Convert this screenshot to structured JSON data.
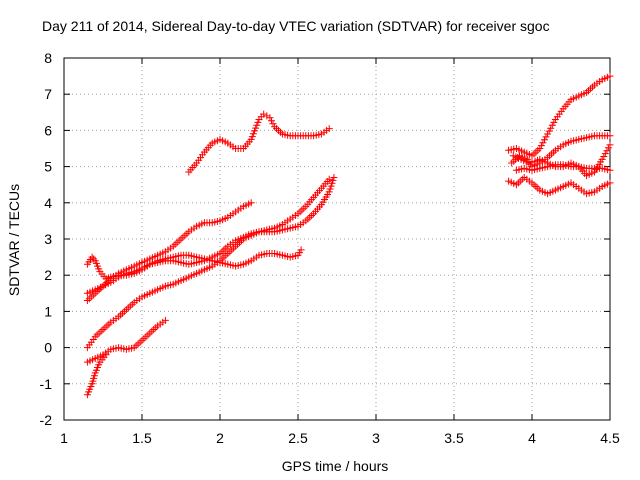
{
  "chart_data": {
    "type": "scatter",
    "title": "Day 211 of 2014, Sidereal Day-to-day VTEC variation (SDTVAR) for receiver sgoc",
    "xlabel": "GPS time / hours",
    "ylabel": "SDTVAR / TECUs",
    "xlim": [
      1,
      4.5
    ],
    "ylim": [
      -2,
      8
    ],
    "x_ticks": [
      "1",
      "1.5",
      "2",
      "2.5",
      "3",
      "3.5",
      "4",
      "4.5"
    ],
    "y_ticks": [
      "-2",
      "-1",
      "0",
      "1",
      "2",
      "3",
      "4",
      "5",
      "6",
      "7",
      "8"
    ],
    "grid": true,
    "marker": "+",
    "color": "#ff0000",
    "series": [
      {
        "points": [
          [
            1.15,
            -1.3
          ],
          [
            1.18,
            -1.0
          ],
          [
            1.2,
            -0.7
          ],
          [
            1.23,
            -0.4
          ],
          [
            1.27,
            -0.2
          ]
        ]
      },
      {
        "points": [
          [
            1.15,
            -0.4
          ],
          [
            1.2,
            -0.3
          ],
          [
            1.25,
            -0.2
          ],
          [
            1.3,
            -0.05
          ],
          [
            1.35,
            0.0
          ],
          [
            1.4,
            -0.05
          ],
          [
            1.45,
            0.0
          ],
          [
            1.5,
            0.2
          ],
          [
            1.55,
            0.4
          ],
          [
            1.6,
            0.6
          ],
          [
            1.65,
            0.75
          ]
        ]
      },
      {
        "points": [
          [
            1.15,
            0.0
          ],
          [
            1.2,
            0.3
          ],
          [
            1.25,
            0.5
          ],
          [
            1.3,
            0.7
          ],
          [
            1.35,
            0.85
          ],
          [
            1.4,
            1.05
          ],
          [
            1.45,
            1.25
          ],
          [
            1.5,
            1.4
          ],
          [
            1.55,
            1.5
          ],
          [
            1.6,
            1.6
          ],
          [
            1.65,
            1.7
          ],
          [
            1.7,
            1.75
          ],
          [
            1.75,
            1.85
          ],
          [
            1.8,
            1.95
          ],
          [
            1.85,
            2.05
          ],
          [
            1.9,
            2.15
          ],
          [
            1.95,
            2.25
          ],
          [
            2.0,
            2.4
          ],
          [
            2.05,
            2.6
          ],
          [
            2.1,
            2.8
          ],
          [
            2.15,
            3.0
          ],
          [
            2.2,
            3.1
          ],
          [
            2.25,
            3.2
          ],
          [
            2.3,
            3.25
          ],
          [
            2.35,
            3.3
          ],
          [
            2.4,
            3.4
          ],
          [
            2.45,
            3.55
          ],
          [
            2.5,
            3.7
          ],
          [
            2.55,
            3.9
          ],
          [
            2.6,
            4.15
          ],
          [
            2.65,
            4.4
          ],
          [
            2.7,
            4.65
          ]
        ]
      },
      {
        "points": [
          [
            1.15,
            1.5
          ],
          [
            1.2,
            1.6
          ],
          [
            1.25,
            1.7
          ],
          [
            1.3,
            1.8
          ],
          [
            1.35,
            1.95
          ],
          [
            1.4,
            2.05
          ],
          [
            1.45,
            2.1
          ],
          [
            1.5,
            2.2
          ],
          [
            1.55,
            2.3
          ],
          [
            1.6,
            2.35
          ],
          [
            1.65,
            2.4
          ],
          [
            1.7,
            2.4
          ],
          [
            1.75,
            2.35
          ],
          [
            1.8,
            2.3
          ],
          [
            1.85,
            2.35
          ],
          [
            1.9,
            2.4
          ],
          [
            1.95,
            2.5
          ],
          [
            2.0,
            2.6
          ],
          [
            2.05,
            2.8
          ],
          [
            2.1,
            2.95
          ],
          [
            2.15,
            3.05
          ],
          [
            2.2,
            3.15
          ],
          [
            2.25,
            3.2
          ],
          [
            2.3,
            3.2
          ],
          [
            2.35,
            3.2
          ],
          [
            2.4,
            3.25
          ],
          [
            2.45,
            3.3
          ],
          [
            2.5,
            3.35
          ],
          [
            2.55,
            3.5
          ],
          [
            2.6,
            3.7
          ],
          [
            2.65,
            3.95
          ],
          [
            2.7,
            4.3
          ],
          [
            2.73,
            4.7
          ]
        ]
      },
      {
        "points": [
          [
            1.15,
            1.3
          ],
          [
            1.2,
            1.5
          ],
          [
            1.25,
            1.7
          ],
          [
            1.3,
            1.9
          ],
          [
            1.35,
            2.05
          ],
          [
            1.4,
            2.15
          ],
          [
            1.45,
            2.25
          ],
          [
            1.5,
            2.35
          ],
          [
            1.55,
            2.45
          ],
          [
            1.6,
            2.55
          ],
          [
            1.65,
            2.65
          ],
          [
            1.7,
            2.8
          ],
          [
            1.75,
            3.0
          ],
          [
            1.8,
            3.2
          ],
          [
            1.85,
            3.35
          ],
          [
            1.9,
            3.45
          ],
          [
            1.95,
            3.45
          ],
          [
            2.0,
            3.5
          ],
          [
            2.05,
            3.6
          ],
          [
            2.1,
            3.75
          ],
          [
            2.15,
            3.9
          ],
          [
            2.2,
            4.0
          ]
        ]
      },
      {
        "points": [
          [
            1.15,
            2.3
          ],
          [
            1.18,
            2.5
          ],
          [
            1.2,
            2.4
          ],
          [
            1.23,
            2.1
          ],
          [
            1.27,
            1.9
          ],
          [
            1.3,
            1.95
          ],
          [
            1.35,
            2.0
          ],
          [
            1.4,
            2.0
          ],
          [
            1.45,
            2.05
          ],
          [
            1.5,
            2.15
          ],
          [
            1.55,
            2.3
          ],
          [
            1.6,
            2.4
          ],
          [
            1.65,
            2.45
          ],
          [
            1.7,
            2.5
          ],
          [
            1.75,
            2.55
          ],
          [
            1.8,
            2.55
          ],
          [
            1.85,
            2.5
          ],
          [
            1.9,
            2.45
          ],
          [
            1.95,
            2.4
          ],
          [
            2.0,
            2.35
          ],
          [
            2.05,
            2.3
          ],
          [
            2.1,
            2.25
          ],
          [
            2.15,
            2.3
          ],
          [
            2.2,
            2.4
          ],
          [
            2.25,
            2.55
          ],
          [
            2.3,
            2.6
          ],
          [
            2.35,
            2.6
          ],
          [
            2.4,
            2.55
          ],
          [
            2.45,
            2.5
          ],
          [
            2.5,
            2.55
          ],
          [
            2.52,
            2.7
          ]
        ]
      },
      {
        "points": [
          [
            1.8,
            4.85
          ],
          [
            1.85,
            5.1
          ],
          [
            1.9,
            5.4
          ],
          [
            1.95,
            5.65
          ],
          [
            2.0,
            5.75
          ],
          [
            2.05,
            5.65
          ],
          [
            2.1,
            5.5
          ],
          [
            2.15,
            5.5
          ],
          [
            2.2,
            5.75
          ],
          [
            2.25,
            6.3
          ],
          [
            2.28,
            6.45
          ],
          [
            2.32,
            6.35
          ],
          [
            2.35,
            6.1
          ],
          [
            2.4,
            5.9
          ],
          [
            2.45,
            5.85
          ],
          [
            2.5,
            5.85
          ],
          [
            2.55,
            5.85
          ],
          [
            2.6,
            5.85
          ],
          [
            2.65,
            5.9
          ],
          [
            2.7,
            6.05
          ]
        ]
      },
      {
        "points": [
          [
            3.85,
            5.45
          ],
          [
            3.9,
            5.5
          ],
          [
            3.95,
            5.4
          ],
          [
            4.0,
            5.3
          ],
          [
            4.05,
            5.5
          ],
          [
            4.1,
            5.9
          ],
          [
            4.15,
            6.3
          ],
          [
            4.2,
            6.6
          ],
          [
            4.25,
            6.85
          ],
          [
            4.3,
            6.95
          ],
          [
            4.35,
            7.05
          ],
          [
            4.4,
            7.25
          ],
          [
            4.45,
            7.4
          ],
          [
            4.5,
            7.5
          ]
        ]
      },
      {
        "points": [
          [
            3.87,
            5.1
          ],
          [
            3.92,
            5.3
          ],
          [
            3.97,
            5.2
          ],
          [
            4.0,
            5.0
          ],
          [
            4.05,
            5.1
          ],
          [
            4.1,
            5.25
          ],
          [
            4.15,
            5.45
          ],
          [
            4.2,
            5.6
          ],
          [
            4.25,
            5.7
          ],
          [
            4.3,
            5.75
          ],
          [
            4.35,
            5.8
          ],
          [
            4.4,
            5.85
          ],
          [
            4.45,
            5.85
          ],
          [
            4.5,
            5.85
          ]
        ]
      },
      {
        "points": [
          [
            3.88,
            5.3
          ],
          [
            3.93,
            5.2
          ],
          [
            3.98,
            5.1
          ],
          [
            4.02,
            5.15
          ],
          [
            4.05,
            5.2
          ],
          [
            4.1,
            5.1
          ],
          [
            4.15,
            5.0
          ],
          [
            4.2,
            5.0
          ],
          [
            4.25,
            5.1
          ],
          [
            4.3,
            5.0
          ],
          [
            4.35,
            4.75
          ],
          [
            4.4,
            4.85
          ],
          [
            4.45,
            5.2
          ],
          [
            4.5,
            5.6
          ]
        ]
      },
      {
        "points": [
          [
            3.9,
            4.9
          ],
          [
            3.95,
            4.95
          ],
          [
            4.0,
            4.9
          ],
          [
            4.05,
            4.95
          ],
          [
            4.1,
            5.0
          ],
          [
            4.15,
            5.05
          ],
          [
            4.2,
            5.05
          ],
          [
            4.25,
            5.0
          ],
          [
            4.3,
            5.0
          ],
          [
            4.35,
            4.95
          ],
          [
            4.4,
            4.95
          ],
          [
            4.45,
            4.95
          ],
          [
            4.5,
            4.9
          ]
        ]
      },
      {
        "points": [
          [
            3.85,
            4.6
          ],
          [
            3.9,
            4.5
          ],
          [
            3.95,
            4.7
          ],
          [
            4.0,
            4.55
          ],
          [
            4.05,
            4.35
          ],
          [
            4.1,
            4.25
          ],
          [
            4.15,
            4.35
          ],
          [
            4.2,
            4.45
          ],
          [
            4.25,
            4.55
          ],
          [
            4.3,
            4.4
          ],
          [
            4.35,
            4.25
          ],
          [
            4.4,
            4.3
          ],
          [
            4.45,
            4.45
          ],
          [
            4.5,
            4.55
          ]
        ]
      }
    ]
  }
}
